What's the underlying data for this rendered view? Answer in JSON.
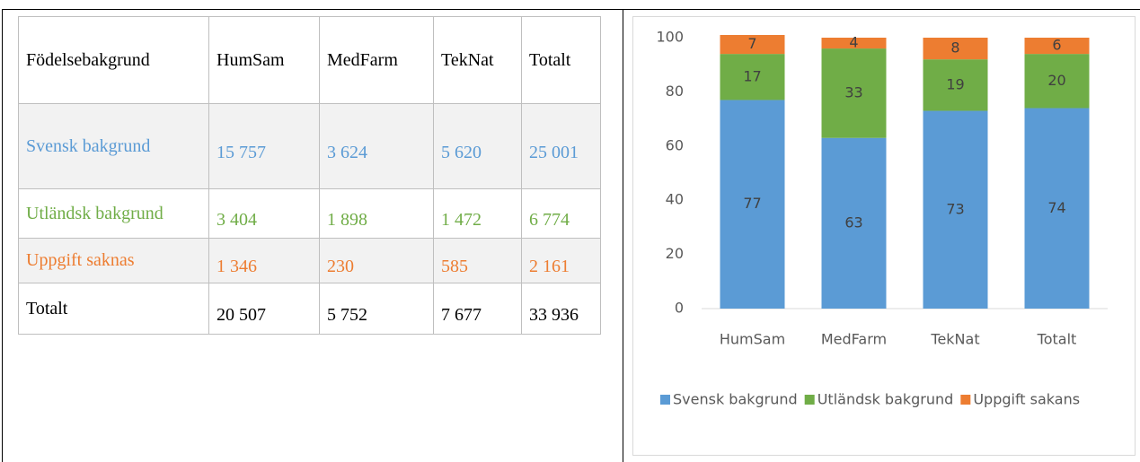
{
  "table": {
    "rows": [
      [
        "Födelsebakgrund",
        "HumSam",
        "MedFarm",
        "TekNat",
        "Totalt"
      ],
      [
        "Svensk bakgrund",
        "15 757",
        "3 624",
        "5 620",
        "25 001"
      ],
      [
        "Utländsk bakgrund",
        "3 404",
        "1 898",
        "1 472",
        "6 774"
      ],
      [
        "Uppgift saknas",
        "1 346",
        "230",
        "585",
        "2 161"
      ],
      [
        "Totalt",
        "20 507",
        "5 752",
        "7 677",
        "33 936"
      ]
    ]
  },
  "chart_data": {
    "type": "bar",
    "stacked": true,
    "categories": [
      "HumSam",
      "MedFarm",
      "TekNat",
      "Totalt"
    ],
    "series": [
      {
        "name": "Svensk bakgrund",
        "color": "#5b9bd5",
        "values": [
          77,
          63,
          73,
          74
        ]
      },
      {
        "name": "Utländsk bakgrund",
        "color": "#70ad47",
        "values": [
          17,
          33,
          19,
          20
        ]
      },
      {
        "name": "Uppgift sakans",
        "color": "#ed7d31",
        "values": [
          7,
          4,
          8,
          6
        ]
      }
    ],
    "ylim": [
      0,
      100
    ],
    "yticks": [
      0,
      20,
      40,
      60,
      80,
      100
    ],
    "grid": false,
    "legend": "bottom"
  }
}
